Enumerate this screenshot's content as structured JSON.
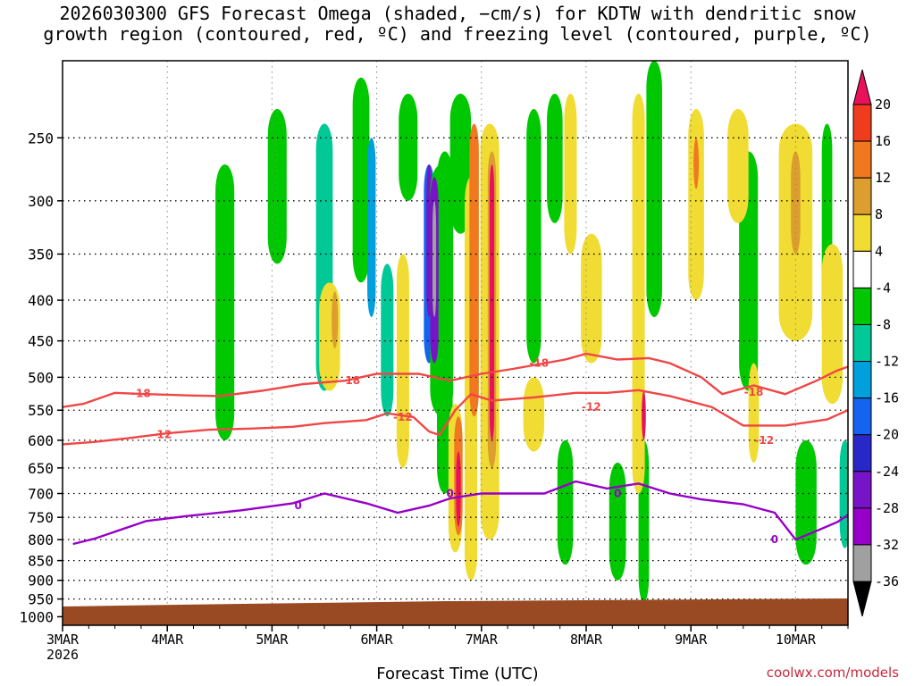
{
  "chart_data": {
    "type": "heatmap",
    "title_line1": "2026030300 GFS Forecast Omega (shaded, −cm/s) for KDTW with dendritic snow",
    "title_line2": "growth region (contoured, red, ºC) and freezing level (contoured, purple, ºC)",
    "xlabel": "Forecast Time (UTC)",
    "ylabel": "",
    "x_ticks": [
      "3MAR",
      "4MAR",
      "5MAR",
      "6MAR",
      "7MAR",
      "8MAR",
      "9MAR",
      "10MAR"
    ],
    "x_year": "2026",
    "xlim_days": [
      0,
      7.5
    ],
    "y_scale": "log",
    "y_ticks": [
      250,
      300,
      350,
      400,
      450,
      500,
      550,
      600,
      650,
      700,
      750,
      800,
      850,
      900,
      950,
      1000
    ],
    "ylim": [
      1025,
      200
    ],
    "colorbar": {
      "labels": [
        "20",
        "16",
        "12",
        "8",
        "4",
        "-4",
        "-8",
        "-12",
        "-16",
        "-20",
        "-24",
        "-28",
        "-32",
        "-36"
      ],
      "colors": [
        "#e8125c",
        "#f03c1e",
        "#f0781e",
        "#dc9e2e",
        "#f0dc32",
        "#ffffff",
        "#00c800",
        "#00c896",
        "#00a0dc",
        "#1464f0",
        "#2828c8",
        "#7814c8",
        "#9600c8",
        "#a0a0a0",
        "#000000"
      ]
    },
    "omega_blobs": [
      {
        "x": 1.55,
        "y0": 270,
        "y1": 600,
        "w": 0.18,
        "c": "#00c800"
      },
      {
        "x": 2.05,
        "y0": 230,
        "y1": 360,
        "w": 0.18,
        "c": "#00c800"
      },
      {
        "x": 2.5,
        "y0": 240,
        "y1": 520,
        "w": 0.16,
        "c": "#00c896"
      },
      {
        "x": 2.85,
        "y0": 210,
        "y1": 380,
        "w": 0.16,
        "c": "#00c800"
      },
      {
        "x": 2.95,
        "y0": 250,
        "y1": 420,
        "w": 0.08,
        "c": "#00a0dc"
      },
      {
        "x": 3.1,
        "y0": 360,
        "y1": 560,
        "w": 0.12,
        "c": "#00c896"
      },
      {
        "x": 3.3,
        "y0": 220,
        "y1": 300,
        "w": 0.18,
        "c": "#00c800"
      },
      {
        "x": 3.5,
        "y0": 270,
        "y1": 480,
        "w": 0.1,
        "c": "#1464f0"
      },
      {
        "x": 3.5,
        "y0": 270,
        "y1": 420,
        "w": 0.05,
        "c": "#7814c8"
      },
      {
        "x": 3.65,
        "y0": 260,
        "y1": 700,
        "w": 0.15,
        "c": "#00c800"
      },
      {
        "x": 3.8,
        "y0": 220,
        "y1": 330,
        "w": 0.2,
        "c": "#00c800"
      },
      {
        "x": 4.5,
        "y0": 230,
        "y1": 480,
        "w": 0.14,
        "c": "#00c800"
      },
      {
        "x": 4.7,
        "y0": 220,
        "y1": 320,
        "w": 0.15,
        "c": "#00c800"
      },
      {
        "x": 4.8,
        "y0": 600,
        "y1": 860,
        "w": 0.15,
        "c": "#00c800"
      },
      {
        "x": 5.3,
        "y0": 640,
        "y1": 900,
        "w": 0.16,
        "c": "#00c800"
      },
      {
        "x": 5.55,
        "y0": 600,
        "y1": 960,
        "w": 0.1,
        "c": "#00c800"
      },
      {
        "x": 5.65,
        "y0": 200,
        "y1": 420,
        "w": 0.15,
        "c": "#00c800"
      },
      {
        "x": 6.55,
        "y0": 260,
        "y1": 520,
        "w": 0.18,
        "c": "#00c800"
      },
      {
        "x": 7.1,
        "y0": 600,
        "y1": 860,
        "w": 0.2,
        "c": "#00c800"
      },
      {
        "x": 7.3,
        "y0": 240,
        "y1": 450,
        "w": 0.1,
        "c": "#00c800"
      },
      {
        "x": 7.47,
        "y0": 600,
        "y1": 820,
        "w": 0.1,
        "c": "#00c896"
      },
      {
        "x": 3.62,
        "y0": 270,
        "y1": 560,
        "w": 0.22,
        "c": "#00c800"
      },
      {
        "x": 3.9,
        "y0": 280,
        "y1": 900,
        "w": 0.12,
        "c": "#f0dc32"
      },
      {
        "x": 4.08,
        "y0": 240,
        "y1": 800,
        "w": 0.18,
        "c": "#f0dc32"
      },
      {
        "x": 4.1,
        "y0": 260,
        "y1": 650,
        "w": 0.08,
        "c": "#dc9e2e"
      },
      {
        "x": 3.93,
        "y0": 240,
        "y1": 560,
        "w": 0.09,
        "c": "#f0781e"
      },
      {
        "x": 4.1,
        "y0": 270,
        "y1": 600,
        "w": 0.045,
        "c": "#e8125c"
      },
      {
        "x": 3.55,
        "y0": 280,
        "y1": 480,
        "w": 0.08,
        "c": "#7814c8"
      },
      {
        "x": 3.55,
        "y0": 300,
        "y1": 420,
        "w": 0.035,
        "c": "#a0a0a0"
      },
      {
        "x": 3.75,
        "y0": 540,
        "y1": 830,
        "w": 0.13,
        "c": "#f0dc32"
      },
      {
        "x": 3.78,
        "y0": 560,
        "y1": 790,
        "w": 0.08,
        "c": "#f0781e"
      },
      {
        "x": 3.78,
        "y0": 620,
        "y1": 770,
        "w": 0.045,
        "c": "#e8125c"
      },
      {
        "x": 2.55,
        "y0": 380,
        "y1": 520,
        "w": 0.2,
        "c": "#f0dc32"
      },
      {
        "x": 2.6,
        "y0": 390,
        "y1": 460,
        "w": 0.06,
        "c": "#dc9e2e"
      },
      {
        "x": 3.25,
        "y0": 350,
        "y1": 650,
        "w": 0.12,
        "c": "#f0dc32"
      },
      {
        "x": 4.5,
        "y0": 500,
        "y1": 620,
        "w": 0.2,
        "c": "#f0dc32"
      },
      {
        "x": 4.85,
        "y0": 220,
        "y1": 350,
        "w": 0.12,
        "c": "#f0dc32"
      },
      {
        "x": 5.05,
        "y0": 330,
        "y1": 480,
        "w": 0.2,
        "c": "#f0dc32"
      },
      {
        "x": 5.5,
        "y0": 220,
        "y1": 700,
        "w": 0.12,
        "c": "#f0dc32"
      },
      {
        "x": 5.55,
        "y0": 520,
        "y1": 600,
        "w": 0.04,
        "c": "#e8125c"
      },
      {
        "x": 6.05,
        "y0": 230,
        "y1": 400,
        "w": 0.15,
        "c": "#f0dc32"
      },
      {
        "x": 6.05,
        "y0": 250,
        "y1": 290,
        "w": 0.05,
        "c": "#f0781e"
      },
      {
        "x": 6.45,
        "y0": 230,
        "y1": 320,
        "w": 0.2,
        "c": "#f0dc32"
      },
      {
        "x": 7.0,
        "y0": 240,
        "y1": 450,
        "w": 0.32,
        "c": "#f0dc32"
      },
      {
        "x": 7.0,
        "y0": 260,
        "y1": 350,
        "w": 0.09,
        "c": "#dc9e2e"
      },
      {
        "x": 7.35,
        "y0": 340,
        "y1": 540,
        "w": 0.2,
        "c": "#f0dc32"
      },
      {
        "x": 6.6,
        "y0": 480,
        "y1": 640,
        "w": 0.1,
        "c": "#f0dc32"
      },
      {
        "x": 7.6,
        "y0": 240,
        "y1": 560,
        "w": 0.08,
        "c": "#f0dc32"
      }
    ],
    "contours": [
      {
        "label": "-18",
        "color": "#f04646",
        "points": [
          [
            0,
            545
          ],
          [
            0.2,
            540
          ],
          [
            0.5,
            523
          ],
          [
            0.8,
            525
          ],
          [
            1.2,
            527
          ],
          [
            1.5,
            528
          ],
          [
            1.9,
            520
          ],
          [
            2.3,
            510
          ],
          [
            2.7,
            505
          ],
          [
            3.0,
            495
          ],
          [
            3.4,
            495
          ],
          [
            3.7,
            505
          ],
          [
            4.0,
            495
          ],
          [
            4.3,
            488
          ],
          [
            4.8,
            475
          ],
          [
            5.0,
            467
          ],
          [
            5.3,
            475
          ],
          [
            5.6,
            473
          ],
          [
            5.8,
            480
          ],
          [
            6.1,
            500
          ],
          [
            6.3,
            525
          ],
          [
            6.6,
            512
          ],
          [
            6.9,
            525
          ],
          [
            7.2,
            505
          ],
          [
            7.4,
            490
          ],
          [
            7.5,
            485
          ]
        ],
        "labels": [
          [
            0.75,
            524
          ],
          [
            2.75,
            505
          ],
          [
            4.55,
            480
          ],
          [
            6.6,
            522
          ]
        ]
      },
      {
        "label": "-12",
        "color": "#f04646",
        "points": [
          [
            0,
            607
          ],
          [
            0.3,
            603
          ],
          [
            0.6,
            597
          ],
          [
            1.0,
            588
          ],
          [
            1.4,
            582
          ],
          [
            1.8,
            580
          ],
          [
            2.2,
            577
          ],
          [
            2.5,
            571
          ],
          [
            2.9,
            566
          ],
          [
            3.1,
            555
          ],
          [
            3.35,
            561
          ],
          [
            3.5,
            585
          ],
          [
            3.6,
            591
          ],
          [
            3.75,
            550
          ],
          [
            3.9,
            525
          ],
          [
            4.1,
            535
          ],
          [
            4.5,
            530
          ],
          [
            4.9,
            523
          ],
          [
            5.2,
            523
          ],
          [
            5.5,
            519
          ],
          [
            5.8,
            528
          ],
          [
            6.2,
            545
          ],
          [
            6.5,
            575
          ],
          [
            6.9,
            575
          ],
          [
            7.3,
            565
          ],
          [
            7.5,
            550
          ]
        ],
        "labels": [
          [
            0.95,
            590
          ],
          [
            3.25,
            561
          ],
          [
            5.05,
            545
          ],
          [
            6.7,
            600
          ]
        ]
      },
      {
        "label": "0",
        "color": "#9600c8",
        "points": [
          [
            0.1,
            810
          ],
          [
            0.3,
            798
          ],
          [
            0.8,
            758
          ],
          [
            1.2,
            747
          ],
          [
            1.7,
            735
          ],
          [
            2.2,
            720
          ],
          [
            2.5,
            700
          ],
          [
            2.9,
            720
          ],
          [
            3.2,
            740
          ],
          [
            3.5,
            725
          ],
          [
            3.7,
            710
          ],
          [
            4.0,
            700
          ],
          [
            4.3,
            700
          ],
          [
            4.6,
            700
          ],
          [
            4.9,
            676
          ],
          [
            5.2,
            690
          ],
          [
            5.5,
            680
          ],
          [
            5.8,
            700
          ],
          [
            6.1,
            712
          ],
          [
            6.5,
            722
          ],
          [
            6.8,
            740
          ],
          [
            7.0,
            800
          ],
          [
            7.2,
            780
          ],
          [
            7.4,
            760
          ],
          [
            7.5,
            745
          ]
        ],
        "labels": [
          [
            2.25,
            725
          ],
          [
            3.7,
            700
          ],
          [
            5.3,
            700
          ],
          [
            6.8,
            800
          ]
        ]
      }
    ]
  },
  "credit": "coolwx.com/models"
}
